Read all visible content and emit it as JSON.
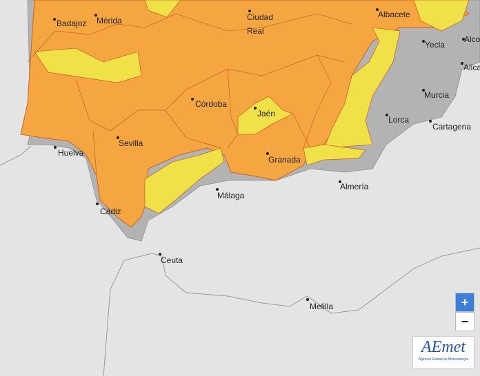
{
  "cities": [
    "Badajoz",
    "Mérida",
    "Ciudad Real",
    "Albacete",
    "Alco",
    "Yecla",
    "Alica",
    "Murcia",
    "Lorca",
    "Cartagena",
    "Córdoba",
    "Jaén",
    "Sevilla",
    "Huelva",
    "Granada",
    "Almería",
    "Málaga",
    "Cádiz",
    "Ceuta",
    "Melilla"
  ],
  "zoom": {
    "in": "+",
    "out": "−"
  },
  "logo": {
    "name": "AEmet",
    "subtitle": "Agencia Estatal de Meteorología"
  }
}
